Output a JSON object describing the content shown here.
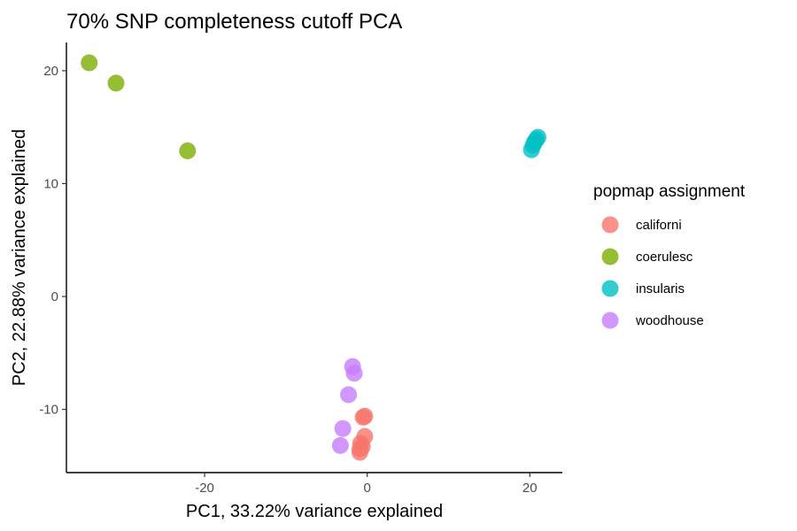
{
  "chart_data": {
    "type": "scatter",
    "title": "70% SNP completeness cutoff PCA",
    "xlabel": "PC1, 33.22% variance explained",
    "ylabel": "PC2, 22.88% variance explained",
    "xlim": [
      -37,
      24
    ],
    "ylim": [
      -15.6,
      22.5
    ],
    "x_ticks": [
      -20,
      0,
      20
    ],
    "y_ticks": [
      -10,
      0,
      10,
      20
    ],
    "grid": false,
    "legend": {
      "title": "popmap assignment",
      "position": "right"
    },
    "series": [
      {
        "name": "californi",
        "color": "#F8766D",
        "points": [
          {
            "x": -0.5,
            "y": -10.7
          },
          {
            "x": -0.3,
            "y": -10.6
          },
          {
            "x": -0.3,
            "y": -12.4
          },
          {
            "x": -0.8,
            "y": -13.0
          },
          {
            "x": -0.6,
            "y": -13.3
          },
          {
            "x": -0.9,
            "y": -13.5
          },
          {
            "x": -0.9,
            "y": -13.8
          }
        ]
      },
      {
        "name": "coerulesc",
        "color": "#7CAE00",
        "points": [
          {
            "x": -34.2,
            "y": 20.7
          },
          {
            "x": -30.9,
            "y": 18.9
          },
          {
            "x": -22.1,
            "y": 12.9
          }
        ]
      },
      {
        "name": "insularis",
        "color": "#00BFC4",
        "points": [
          {
            "x": 20.2,
            "y": 13.0
          },
          {
            "x": 20.4,
            "y": 13.4
          },
          {
            "x": 20.6,
            "y": 13.7
          },
          {
            "x": 20.8,
            "y": 13.9
          },
          {
            "x": 21.0,
            "y": 14.1
          }
        ]
      },
      {
        "name": "woodhouse",
        "color": "#C77CFF",
        "points": [
          {
            "x": -1.8,
            "y": -6.2
          },
          {
            "x": -1.6,
            "y": -6.8
          },
          {
            "x": -2.3,
            "y": -8.7
          },
          {
            "x": -3.0,
            "y": -11.7
          },
          {
            "x": -3.3,
            "y": -13.2
          }
        ]
      }
    ]
  }
}
